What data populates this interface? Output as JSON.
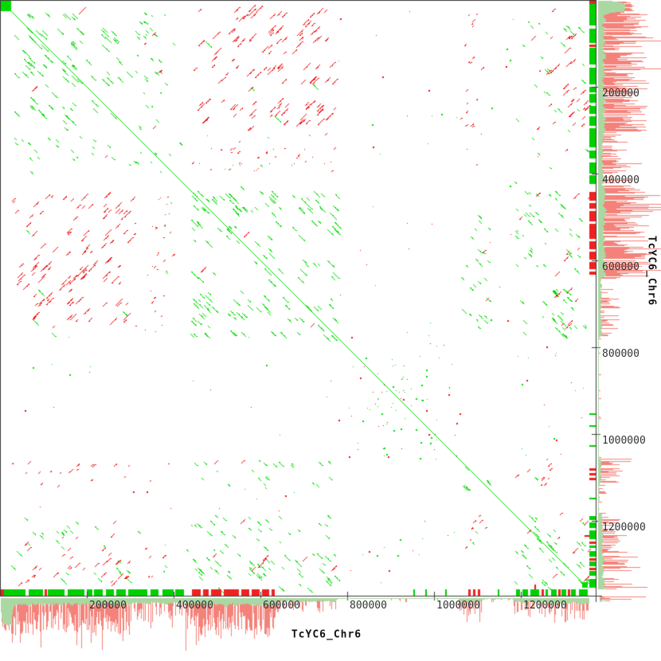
{
  "chart_data": {
    "type": "scatter",
    "subtype": "genomic-dotplot-self-alignment",
    "sequence": "TcYC6_Chr6",
    "sequence_length": 1356000,
    "x_axis": {
      "label": "TcYC6_Chr6",
      "range": [
        0,
        1356000
      ],
      "ticks": [
        {
          "value": 200000,
          "label": "200000"
        },
        {
          "value": 400000,
          "label": "400000"
        },
        {
          "value": 600000,
          "label": "600000"
        },
        {
          "value": 800000,
          "label": "800000"
        },
        {
          "value": 1000000,
          "label": "1000000"
        },
        {
          "value": 1200000,
          "label": "1200000"
        }
      ]
    },
    "y_axis": {
      "label": "TcYC6_Chr6",
      "range": [
        0,
        1356000
      ],
      "ticks": [
        {
          "value": 200000,
          "label": "200000"
        },
        {
          "value": 400000,
          "label": "400000"
        },
        {
          "value": 600000,
          "label": "600000"
        },
        {
          "value": 800000,
          "label": "800000"
        },
        {
          "value": 1000000,
          "label": "1000000"
        },
        {
          "value": 1200000,
          "label": "1200000"
        }
      ]
    },
    "colors": {
      "forward_match": "#00dc00",
      "reverse_match": "#ee1111",
      "strip_green": "#00d000",
      "strip_red": "#ee2222",
      "hist_fill": "#abd8a2",
      "hist_peak": "#f4827a",
      "axis": "#3c3c3c",
      "label_text": "#333333",
      "background": "#ffffff"
    },
    "grid": false,
    "legend": null,
    "solid_blocks": [
      {
        "x": [
          0,
          24000
        ],
        "y": [
          0,
          24000
        ]
      },
      {
        "x": [
          1343000,
          1356000
        ],
        "y": [
          1343000,
          1356000
        ]
      }
    ],
    "gap_bands": [
      [
        105000,
        114000,
        0.3
      ],
      [
        219000,
        231000,
        0.3
      ],
      [
        302000,
        313000,
        0.45
      ],
      [
        396000,
        440000,
        0.12
      ],
      [
        556000,
        570000,
        0.4
      ],
      [
        649000,
        663000,
        0.5
      ]
    ],
    "regions": [
      {
        "x": [
          24000,
          300000
        ],
        "y": [
          24000,
          300000
        ],
        "g": 0.13,
        "r": 0.004,
        "L": 6,
        "k": "diag",
        "sym": false
      },
      {
        "x": [
          303000,
          426000
        ],
        "y": [
          303000,
          426000
        ],
        "g": 0.055,
        "r": 0.003,
        "L": 3,
        "k": "diag",
        "sym": false
      },
      {
        "x": [
          426000,
          772000
        ],
        "y": [
          426000,
          772000
        ],
        "g": 0.125,
        "r": 0.004,
        "L": 6,
        "k": "diag",
        "sym": false
      },
      {
        "x": [
          1060000,
          1125000
        ],
        "y": [
          1060000,
          1125000
        ],
        "g": 0.1,
        "r": 0.01,
        "L": 5,
        "k": "diag",
        "sym": false
      },
      {
        "x": [
          1185000,
          1268000
        ],
        "y": [
          1185000,
          1268000
        ],
        "g": 0.1,
        "r": 0.025,
        "L": 6,
        "k": "diag",
        "sym": false
      },
      {
        "x": [
          1268000,
          1356000
        ],
        "y": [
          1268000,
          1356000
        ],
        "g": 0.11,
        "r": 0.05,
        "L": 5,
        "k": "diag",
        "sym": false
      },
      {
        "x": [
          772000,
          1060000
        ],
        "y": [
          772000,
          1060000
        ],
        "g": 0.006,
        "r": 0.005,
        "L": 1.6,
        "k": "speck",
        "sym": false
      },
      {
        "x": [
          840000,
          985000
        ],
        "y": [
          840000,
          985000
        ],
        "g": 0.012,
        "r": 0.009,
        "L": 1.6,
        "k": "speck",
        "sym": false
      },
      {
        "x": [
          24000,
          300000
        ],
        "y": [
          303000,
          426000
        ],
        "g": 0.045,
        "r": 0.004,
        "L": 3,
        "k": "diag",
        "sym": true
      },
      {
        "x": [
          24000,
          300000
        ],
        "y": [
          426000,
          772000
        ],
        "g": 0.004,
        "r": 0.13,
        "L": 6,
        "k": "diag",
        "sym": true
      },
      {
        "x": [
          303000,
          426000
        ],
        "y": [
          426000,
          772000
        ],
        "g": 0.002,
        "r": 0.03,
        "L": 2,
        "k": "diag",
        "sym": true
      },
      {
        "x": [
          24000,
          300000
        ],
        "y": [
          1060000,
          1125000
        ],
        "g": 0.003,
        "r": 0.05,
        "L": 3,
        "k": "diag",
        "sym": true
      },
      {
        "x": [
          426000,
          772000
        ],
        "y": [
          1060000,
          1125000
        ],
        "g": 0.055,
        "r": 0.004,
        "L": 4,
        "k": "diag",
        "sym": true
      },
      {
        "x": [
          303000,
          426000
        ],
        "y": [
          1060000,
          1125000
        ],
        "g": 0.002,
        "r": 0.015,
        "L": 2,
        "k": "diag",
        "sym": true
      },
      {
        "x": [
          24000,
          300000
        ],
        "y": [
          1185000,
          1268000
        ],
        "g": 0.05,
        "r": 0.012,
        "L": 4,
        "k": "diag",
        "sym": true
      },
      {
        "x": [
          426000,
          772000
        ],
        "y": [
          1185000,
          1268000
        ],
        "g": 0.05,
        "r": 0.004,
        "L": 4,
        "k": "diag",
        "sym": true
      },
      {
        "x": [
          1060000,
          1125000
        ],
        "y": [
          1185000,
          1268000
        ],
        "g": 0.02,
        "r": 0.05,
        "L": 3,
        "k": "diag",
        "sym": true
      },
      {
        "x": [
          24000,
          300000
        ],
        "y": [
          1268000,
          1356000
        ],
        "g": 0.03,
        "r": 0.08,
        "L": 5,
        "k": "diag",
        "sym": true
      },
      {
        "x": [
          426000,
          772000
        ],
        "y": [
          1268000,
          1356000
        ],
        "g": 0.08,
        "r": 0.012,
        "L": 5,
        "k": "diag",
        "sym": true
      },
      {
        "x": [
          1185000,
          1268000
        ],
        "y": [
          1268000,
          1356000
        ],
        "g": 0.05,
        "r": 0.02,
        "L": 5,
        "k": "diag",
        "sym": true
      },
      {
        "x": [
          303000,
          426000
        ],
        "y": [
          1185000,
          1268000
        ],
        "g": 0.015,
        "r": 0.004,
        "L": 2,
        "k": "diag",
        "sym": true
      },
      {
        "x": [
          303000,
          426000
        ],
        "y": [
          1268000,
          1356000
        ],
        "g": 0.015,
        "r": 0.015,
        "L": 3,
        "k": "diag",
        "sym": true
      },
      {
        "x": [
          0,
          24000
        ],
        "y": [
          1268000,
          1356000
        ],
        "g": 0.004,
        "r": 0.04,
        "L": 4,
        "k": "diag",
        "sym": true
      },
      {
        "x": [
          772000,
          1060000
        ],
        "y": [
          1185000,
          1356000
        ],
        "g": 0.005,
        "r": 0.004,
        "L": 1.6,
        "k": "speck",
        "sym": true
      },
      {
        "x": [
          772000,
          1060000
        ],
        "y": [
          24000,
          772000
        ],
        "g": 0.0012,
        "r": 0.001,
        "L": 1.5,
        "k": "speck",
        "sym": true
      },
      {
        "x": [
          1125000,
          1185000
        ],
        "y": [
          24000,
          772000
        ],
        "g": 0.002,
        "r": 0.0015,
        "L": 1.5,
        "k": "speck",
        "sym": true
      },
      {
        "x": [
          1336000,
          1356000
        ],
        "y": [
          1079000,
          1108000
        ],
        "g": 0.03,
        "r": 0.22,
        "L": 9,
        "k": "hbar",
        "sym": true
      },
      {
        "x": [
          1195000,
          1268000
        ],
        "y": [
          1342000,
          1356000
        ],
        "g": 0.12,
        "r": 0.1,
        "L": 8,
        "k": "vbar",
        "sym": true
      }
    ],
    "annotation_track": {
      "segments": [
        {
          "s": 0,
          "e": 9000,
          "c": "r"
        },
        {
          "s": 9000,
          "e": 60000,
          "c": "g"
        },
        {
          "s": 66000,
          "e": 100000,
          "c": "g"
        },
        {
          "s": 102000,
          "e": 108000,
          "c": "r"
        },
        {
          "s": 110000,
          "e": 150000,
          "c": "g"
        },
        {
          "s": 155000,
          "e": 195000,
          "c": "g"
        },
        {
          "s": 199000,
          "e": 212000,
          "c": "g"
        },
        {
          "s": 216000,
          "e": 238000,
          "c": "g"
        },
        {
          "s": 243000,
          "e": 262000,
          "c": "g"
        },
        {
          "s": 267000,
          "e": 290000,
          "c": "g"
        },
        {
          "s": 295000,
          "e": 340000,
          "c": "g"
        },
        {
          "s": 347000,
          "e": 367000,
          "c": "g"
        },
        {
          "s": 373000,
          "e": 399000,
          "c": "g"
        },
        {
          "s": 403000,
          "e": 424000,
          "c": "g"
        },
        {
          "s": 441000,
          "e": 462000,
          "c": "r"
        },
        {
          "s": 467000,
          "e": 481000,
          "c": "r"
        },
        {
          "s": 486000,
          "e": 511000,
          "c": "r"
        },
        {
          "s": 515000,
          "e": 551000,
          "c": "r"
        },
        {
          "s": 555000,
          "e": 575000,
          "c": "r"
        },
        {
          "s": 579000,
          "e": 599000,
          "c": "r"
        },
        {
          "s": 603000,
          "e": 621000,
          "c": "r"
        },
        {
          "s": 625000,
          "e": 634000,
          "c": "r"
        },
        {
          "s": 953000,
          "e": 957000,
          "c": "g"
        },
        {
          "s": 981000,
          "e": 985000,
          "c": "g"
        },
        {
          "s": 1027000,
          "e": 1031000,
          "c": "g"
        },
        {
          "s": 1079000,
          "e": 1086000,
          "c": "r"
        },
        {
          "s": 1090000,
          "e": 1096000,
          "c": "r"
        },
        {
          "s": 1101000,
          "e": 1108000,
          "c": "r"
        },
        {
          "s": 1147000,
          "e": 1152000,
          "c": "g"
        },
        {
          "s": 1189000,
          "e": 1200000,
          "c": "g"
        },
        {
          "s": 1204000,
          "e": 1217000,
          "c": "g"
        },
        {
          "s": 1222000,
          "e": 1243000,
          "c": "g"
        },
        {
          "s": 1249000,
          "e": 1255000,
          "c": "r"
        },
        {
          "s": 1258000,
          "e": 1265000,
          "c": "g"
        },
        {
          "s": 1271000,
          "e": 1285000,
          "c": "g"
        },
        {
          "s": 1287000,
          "e": 1293000,
          "c": "r"
        },
        {
          "s": 1295000,
          "e": 1307000,
          "c": "g"
        },
        {
          "s": 1309000,
          "e": 1315000,
          "c": "r"
        },
        {
          "s": 1317000,
          "e": 1329000,
          "c": "g"
        },
        {
          "s": 1334000,
          "e": 1356000,
          "c": "g"
        }
      ]
    },
    "density_profile_envelopes": [
      [
        0,
        24000,
        32,
        36,
        0.5,
        4,
        8
      ],
      [
        24000,
        300000,
        4,
        12,
        0.8,
        6,
        38
      ],
      [
        300000,
        426000,
        3,
        9,
        0.55,
        4,
        24
      ],
      [
        426000,
        634000,
        5,
        12,
        0.85,
        8,
        40
      ],
      [
        634000,
        772000,
        2,
        6,
        0.35,
        3,
        16
      ],
      [
        772000,
        1056000,
        0,
        2,
        0.04,
        1,
        4
      ],
      [
        1056000,
        1110000,
        2,
        6,
        0.5,
        4,
        18
      ],
      [
        1110000,
        1180000,
        0,
        3,
        0.1,
        2,
        6
      ],
      [
        1180000,
        1270000,
        3,
        8,
        0.5,
        4,
        20
      ],
      [
        1270000,
        1356000,
        4,
        10,
        0.6,
        5,
        24
      ]
    ]
  }
}
